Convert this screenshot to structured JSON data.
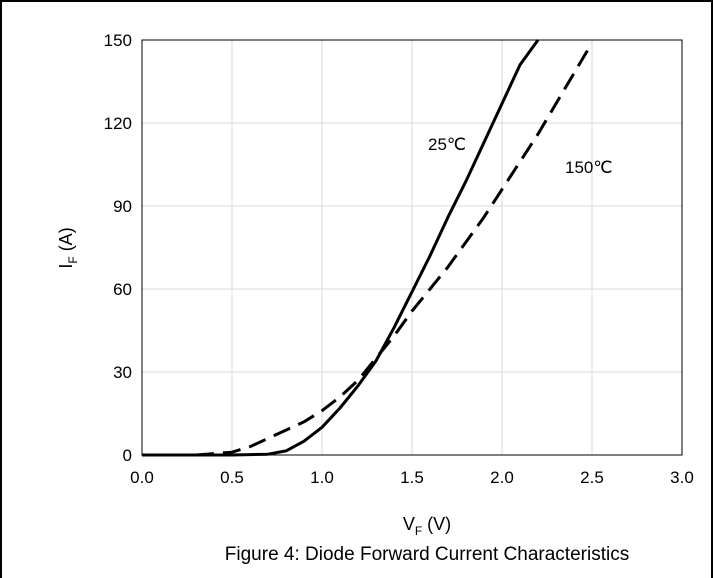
{
  "chart_data": {
    "type": "line",
    "caption": "Figure 4: Diode Forward Current Characteristics",
    "xlabel": {
      "main": "V",
      "sub": "F",
      "unit": " (V)"
    },
    "ylabel": {
      "main": "I",
      "sub": "F",
      "unit": " (A)"
    },
    "xlim": [
      0,
      3
    ],
    "ylim": [
      0,
      150
    ],
    "x_ticks": [
      "0.0",
      "0.5",
      "1.0",
      "1.5",
      "2.0",
      "2.5",
      "3.0"
    ],
    "y_ticks": [
      "0",
      "30",
      "60",
      "90",
      "120",
      "150"
    ],
    "grid": true,
    "series": [
      {
        "name": "25℃",
        "style": "solid",
        "color": "#000000",
        "x": [
          0.0,
          0.5,
          0.7,
          0.8,
          0.9,
          1.0,
          1.1,
          1.2,
          1.3,
          1.4,
          1.5,
          1.6,
          1.7,
          1.8,
          1.9,
          2.0,
          2.1,
          2.2
        ],
        "y": [
          0,
          0,
          0.3,
          1.5,
          5,
          10,
          17,
          25,
          34,
          46,
          59,
          72,
          86,
          99,
          113,
          127,
          141,
          150
        ]
      },
      {
        "name": "150℃",
        "style": "dashed",
        "color": "#000000",
        "x": [
          0.0,
          0.3,
          0.5,
          0.6,
          0.7,
          0.8,
          0.9,
          1.0,
          1.1,
          1.2,
          1.3,
          1.4,
          1.5,
          1.6,
          1.7,
          1.8,
          1.9,
          2.0,
          2.1,
          2.2,
          2.3,
          2.4,
          2.5
        ],
        "y": [
          0,
          0,
          1,
          3,
          6,
          9,
          12,
          16,
          21,
          27,
          35,
          43,
          52,
          60,
          68,
          77,
          86,
          96,
          106,
          116,
          127,
          138,
          149
        ]
      }
    ],
    "annotations": [
      {
        "text": "25℃",
        "series": 0
      },
      {
        "text": "150℃",
        "series": 1
      }
    ]
  }
}
